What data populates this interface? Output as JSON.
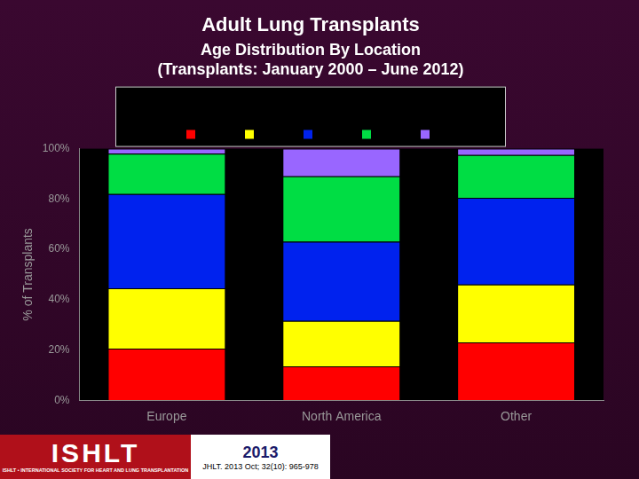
{
  "chart_data": {
    "type": "bar",
    "title": "Adult Lung Transplants",
    "subtitle": [
      "Age Distribution By Location",
      "(Transplants: January 2000 – June 2012)"
    ],
    "y_label": "% of Transplants",
    "categories": [
      "Europe",
      "North America",
      "Other"
    ],
    "series": [
      {
        "color": "#ff0000",
        "values": [
          20.5,
          13.5,
          23
        ]
      },
      {
        "color": "#ffff00",
        "values": [
          24,
          18,
          23
        ]
      },
      {
        "color": "#0022ee",
        "values": [
          37.5,
          31.5,
          34.5
        ]
      },
      {
        "color": "#00dd44",
        "values": [
          16,
          26,
          17
        ]
      },
      {
        "color": "#9966ff",
        "values": [
          2,
          11,
          2.5
        ]
      }
    ],
    "stacked": true,
    "ylim": [
      0,
      100
    ],
    "yticks": [
      {
        "value": 0,
        "label": "0%"
      },
      {
        "value": 20,
        "label": "20%"
      },
      {
        "value": 40,
        "label": "40%"
      },
      {
        "value": 60,
        "label": "60%"
      },
      {
        "value": 80,
        "label": "80%"
      },
      {
        "value": 100,
        "label": "100%"
      }
    ],
    "grid": false,
    "legend": "top",
    "annotations": [
      "ISHLT",
      "ISHLT • INTERNATIONAL SOCIETY FOR HEART AND LUNG TRANSPLANTATION",
      "2013",
      "JHLT. 2013 Oct; 32(10): 965-978"
    ]
  }
}
